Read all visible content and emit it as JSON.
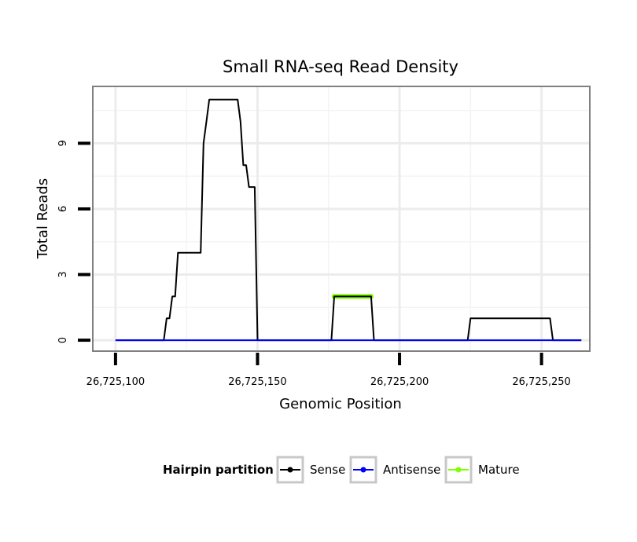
{
  "chart_data": {
    "type": "line",
    "title": "Small RNA-seq Read Density",
    "xlabel": "Genomic Position",
    "ylabel": "Total Reads",
    "xlim": [
      26725092,
      26725267
    ],
    "ylim": [
      -0.5,
      11.6
    ],
    "x_ticks": [
      26725100,
      26725150,
      26725200,
      26725250
    ],
    "x_tick_labels": [
      "26,725,100",
      "26,725,150",
      "26,725,200",
      "26,725,250"
    ],
    "y_ticks": [
      0,
      3,
      6,
      9
    ],
    "y_tick_labels": [
      "0",
      "3",
      "6",
      "9"
    ],
    "grid": true,
    "legend": {
      "title": "Hairpin partition",
      "position": "bottom"
    },
    "series": [
      {
        "name": "Sense",
        "color": "#000000",
        "x": [
          26725100,
          26725117,
          26725118,
          26725119,
          26725120,
          26725121,
          26725122,
          26725123,
          26725130,
          26725131,
          26725132,
          26725133,
          26725134,
          26725142,
          26725143,
          26725144,
          26725145,
          26725146,
          26725147,
          26725148,
          26725149,
          26725150,
          26725151,
          26725152,
          26725176,
          26725177,
          26725190,
          26725191,
          26725192,
          26725224,
          26725225,
          26725253,
          26725254,
          26725264
        ],
        "y": [
          0,
          0,
          1,
          1,
          2,
          2,
          4,
          4,
          4,
          9,
          10,
          11,
          11,
          11,
          11,
          10,
          8,
          8,
          7,
          7,
          7,
          0,
          0,
          0,
          0,
          2,
          2,
          0,
          0,
          0,
          1,
          1,
          0,
          0
        ]
      },
      {
        "name": "Antisense",
        "color": "#0000ff",
        "x": [
          26725100,
          26725264
        ],
        "y": [
          0,
          0
        ]
      },
      {
        "name": "Mature",
        "color": "#7fff00",
        "x": [
          26725177,
          26725178,
          26725179,
          26725180,
          26725181,
          26725182,
          26725183,
          26725184,
          26725185,
          26725186,
          26725187,
          26725188,
          26725189,
          26725190
        ],
        "y": [
          2,
          2,
          2,
          2,
          2,
          2,
          2,
          2,
          2,
          2,
          2,
          2,
          2,
          2
        ]
      }
    ]
  }
}
